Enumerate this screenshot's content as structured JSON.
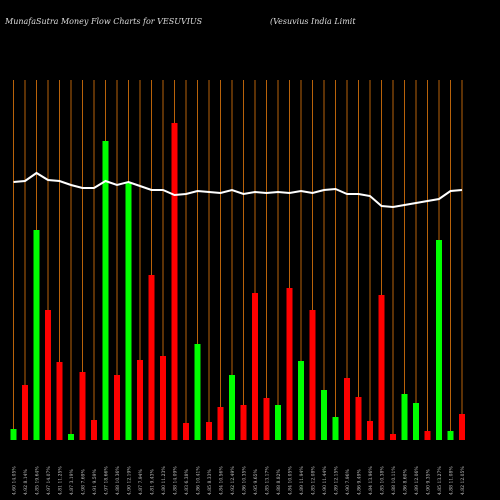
{
  "chart_data": {
    "type": "bar",
    "title": "MunafaSutra  Money Flow  Charts for VESUVIUS",
    "subtitle": "(Vesuvius India  Limit",
    "categories": [
      "4.60 14.05%",
      "4.92 8.14%",
      "4.85 19.64%",
      "4.97 14.07%",
      "4.81 11.25%",
      "4.87 3.19%",
      "4.98 7.69%",
      "4.91 9.59%",
      "4.97 18.66%",
      "4.88 10.36%",
      "4.90 12.19%",
      "4.87 7.94%",
      "4.81 9.43%",
      "4.80 11.23%",
      "4.88 14.09%",
      "4.83 6.38%",
      "4.86 10.41%",
      "4.85 8.33%",
      "4.84 10.56%",
      "4.92 12.49%",
      "4.86 10.35%",
      "4.95 9.65%",
      "4.85 13.17%",
      "4.88 8.82%",
      "4.84 10.05%",
      "4.89 11.94%",
      "4.85 12.08%",
      "4.90 11.44%",
      "4.89 12.15%",
      "4.90 7.96%",
      "4.86 9.49%",
      "4.84 13.96%",
      "4.85 10.38%",
      "4.88 10.11%",
      "4.86 8.60%",
      "4.89 12.06%",
      "4.90 9.35%",
      "4.85 13.27%",
      "4.88 11.08%",
      "4.82 12.05%"
    ],
    "values": [
      11,
      55,
      210,
      130,
      78,
      6,
      68,
      20,
      299,
      65,
      257,
      80,
      165,
      84,
      317,
      17,
      96,
      18,
      33,
      65,
      35,
      147,
      42,
      35,
      152,
      79,
      130,
      50,
      23,
      62,
      43,
      19,
      145,
      6,
      46,
      37,
      9,
      200,
      9,
      26
    ],
    "colors": [
      "#00ff00",
      "#ff0000",
      "#00ff00",
      "#ff0000",
      "#ff0000",
      "#00ff00",
      "#ff0000",
      "#ff0000",
      "#00ff00",
      "#ff0000",
      "#00ff00",
      "#ff0000",
      "#ff0000",
      "#ff0000",
      "#ff0000",
      "#ff0000",
      "#00ff00",
      "#ff0000",
      "#ff0000",
      "#00ff00",
      "#ff0000",
      "#ff0000",
      "#ff0000",
      "#00ff00",
      "#ff0000",
      "#00ff00",
      "#ff0000",
      "#00ff00",
      "#00ff00",
      "#ff0000",
      "#ff0000",
      "#ff0000",
      "#ff0000",
      "#ff0000",
      "#00ff00",
      "#00ff00",
      "#ff0000",
      "#00ff00",
      "#00ff00",
      "#ff0000"
    ],
    "line_values": [
      258,
      259,
      267,
      260,
      259,
      255,
      252,
      252,
      259,
      255,
      258,
      254,
      250,
      250,
      245,
      246,
      249,
      248,
      247,
      250,
      246,
      248,
      247,
      248,
      247,
      249,
      247,
      250,
      251,
      246,
      246,
      244,
      234,
      233,
      235,
      237,
      239,
      241,
      249,
      250
    ],
    "line_color": "#ffffff",
    "grid_color": "#b8620a",
    "ylim": [
      0,
      360
    ]
  }
}
